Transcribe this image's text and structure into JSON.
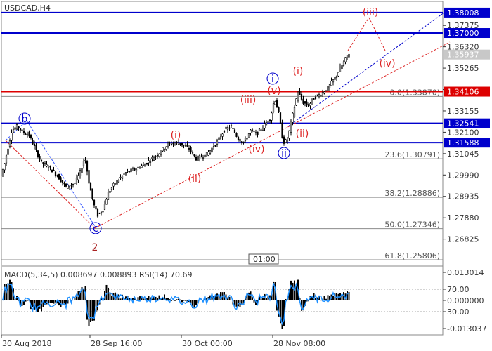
{
  "chart_data": {
    "type": "candlestick",
    "title": "USDCAD,H4",
    "price_axis": {
      "range": [
        1.2553,
        1.3856
      ],
      "tick_labels": [
        "1.37375",
        "1.36320",
        "1.35265",
        "1.34210",
        "1.33155",
        "1.32100",
        "1.31045",
        "1.29990",
        "1.28935",
        "1.27880",
        "1.26825"
      ],
      "current_price": "1.35937"
    },
    "time_axis": {
      "labels": [
        "30 Aug 2018",
        "28 Sep 16:00",
        "30 Oct 00:00",
        "28 Nov 08:00"
      ],
      "timeframe_box": "01:00"
    },
    "horizontal_levels": [
      {
        "value": 1.38008,
        "label": "1.38008",
        "color": "#0000cc"
      },
      {
        "value": 1.37,
        "label": "1.37000",
        "color": "#0000cc"
      },
      {
        "value": 1.34106,
        "label": "1.34106",
        "color": "#dd0000"
      },
      {
        "value": 1.32541,
        "label": "1.32541",
        "color": "#0000cc"
      },
      {
        "value": 1.31588,
        "label": "1.31588",
        "color": "#0000cc"
      }
    ],
    "fibonacci": [
      {
        "value": 1.3387,
        "label": "0.0(1.33870)"
      },
      {
        "value": 1.30791,
        "label": "23.6(1.30791)"
      },
      {
        "value": 1.28886,
        "label": "38.2(1.28886)"
      },
      {
        "value": 1.27346,
        "label": "50.0(1.27346)"
      },
      {
        "value": 1.25806,
        "label": "61.8(1.25806)"
      }
    ],
    "wave_labels": [
      {
        "text": "b",
        "circled": true,
        "color": "#0000cc"
      },
      {
        "text": "c",
        "circled": true,
        "color": "#0000cc"
      },
      {
        "text": "2",
        "circled": false,
        "color": "#aa2222"
      },
      {
        "text": "(i)",
        "circled": false,
        "color": "#dd2222"
      },
      {
        "text": "(ii)",
        "circled": false,
        "color": "#dd2222"
      },
      {
        "text": "(iii)",
        "circled": false,
        "color": "#dd2222"
      },
      {
        "text": "(iv)",
        "circled": false,
        "color": "#dd2222"
      },
      {
        "text": "(v)",
        "circled": false,
        "color": "#dd2222"
      },
      {
        "text": "i",
        "circled": true,
        "color": "#0000cc"
      },
      {
        "text": "ii",
        "circled": true,
        "color": "#0000cc"
      },
      {
        "text": "(i)",
        "circled": false,
        "color": "#dd2222"
      },
      {
        "text": "(ii)",
        "circled": false,
        "color": "#dd2222"
      },
      {
        "text": "(iii)",
        "circled": false,
        "color": "#dd2222"
      },
      {
        "text": "(iv)",
        "circled": false,
        "color": "#dd2222"
      }
    ],
    "indicator": {
      "header": "MACD(5,34,5) 0.008697 0.008893 RSI(14) 70.69",
      "range": [
        -0.013037,
        0.013014
      ],
      "tick_labels": [
        "0.013014",
        "70.00",
        "0.000000",
        "30.00",
        "-0.013037"
      ]
    },
    "colors": {
      "candles": "#000000",
      "macd_hist": "#000000",
      "rsi_line": "#1e90ff",
      "support_line": "#dd0000",
      "resistance_line": "#0000cc"
    }
  }
}
